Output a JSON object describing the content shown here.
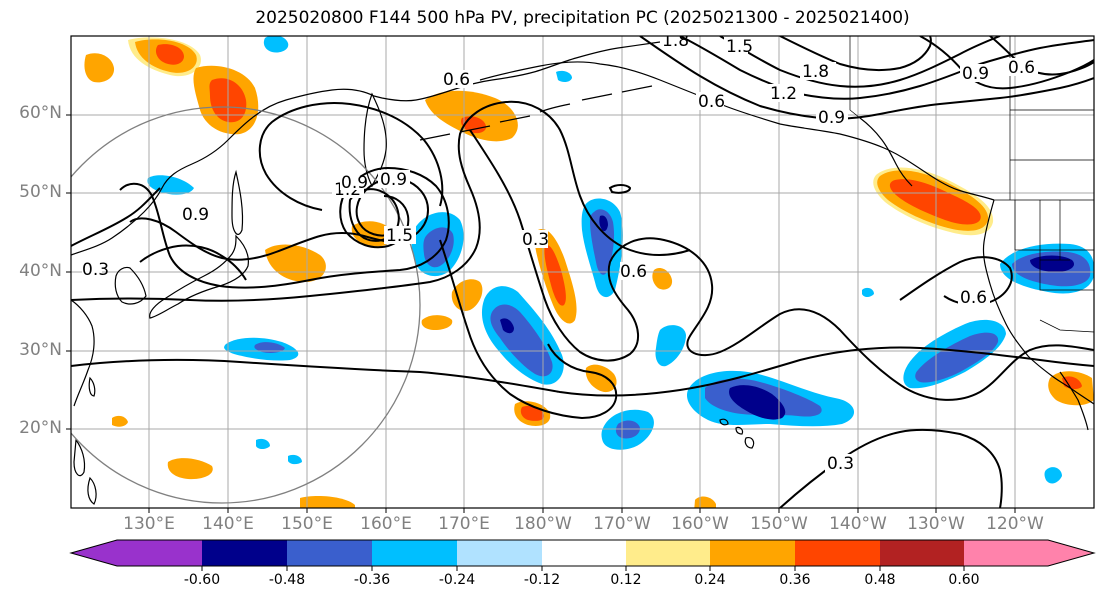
{
  "title": "2025020800 F144 500 hPa PV, precipitation PC (2025021300 - 2025021400)",
  "lat_labels": [
    "60°N",
    "50°N",
    "40°N",
    "30°N",
    "20°N"
  ],
  "lon_labels": [
    "130°E",
    "140°E",
    "150°E",
    "160°E",
    "170°E",
    "180°W",
    "170°W",
    "160°W",
    "150°W",
    "140°W",
    "130°W",
    "120°W"
  ],
  "contour_labels": [
    "0.6",
    "0.9",
    "1.2",
    "1.5",
    "1.8",
    "0.9",
    "0.6",
    "0.3",
    "0.9",
    "1.5",
    "0.3",
    "0.6",
    "0.9",
    "1.2",
    "1.8",
    "0.9",
    "0.6",
    "0.6",
    "0.3"
  ],
  "colorbar": {
    "ticks": [
      "-0.60",
      "-0.48",
      "-0.36",
      "-0.24",
      "-0.12",
      "0.12",
      "0.24",
      "0.36",
      "0.48",
      "0.60"
    ],
    "colors": [
      "#9932cc",
      "#00008b",
      "#3a5fcd",
      "#00bfff",
      "#b0e2ff",
      "#ffffff",
      "#ffec8b",
      "#ffa500",
      "#ff4500",
      "#b22222",
      "#ff82ab"
    ]
  },
  "colors": {
    "pv_contour": "#000000",
    "coast": "#000000",
    "grid": "#a9a9a9",
    "circle": "#808080"
  }
}
